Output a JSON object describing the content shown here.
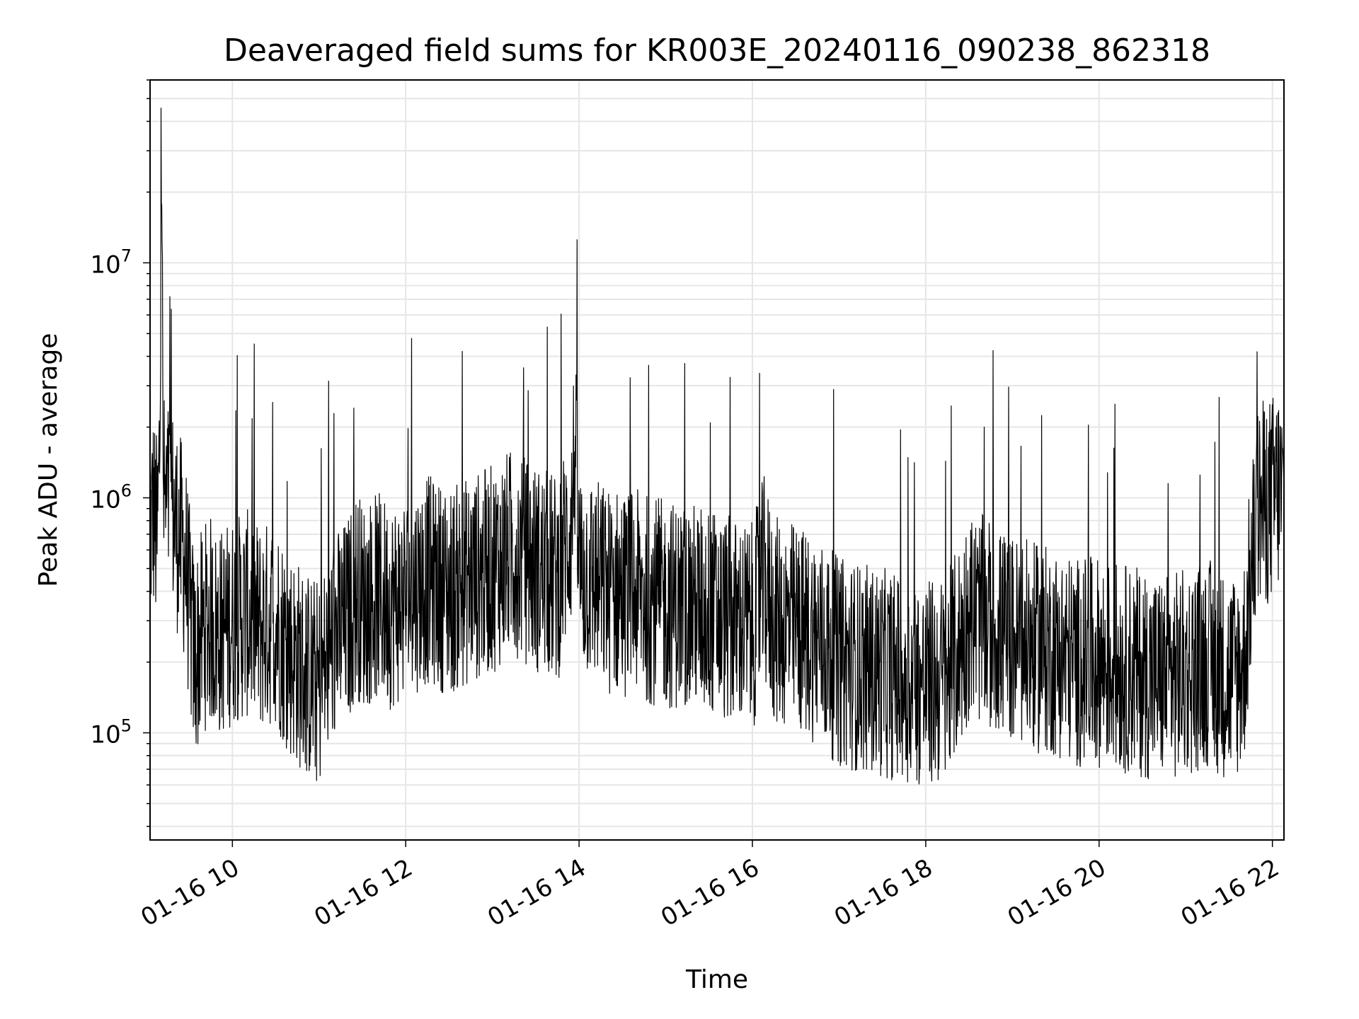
{
  "chart_data": {
    "type": "line",
    "title": "Deaveraged field sums for KR003E_20240116_090238_862318",
    "xlabel": "Time",
    "ylabel": "Peak ADU - average",
    "xscale": "time",
    "yscale": "log",
    "xlim": [
      "01-16 09:03",
      "01-16 22:08"
    ],
    "ylim": [
      35000,
      60000000
    ],
    "grid": true,
    "legend": "none",
    "line_color": "#000000",
    "x_ticks": [
      {
        "value": "01-16 10:00",
        "label": "01-16 10"
      },
      {
        "value": "01-16 12:00",
        "label": "01-16 12"
      },
      {
        "value": "01-16 14:00",
        "label": "01-16 14"
      },
      {
        "value": "01-16 16:00",
        "label": "01-16 16"
      },
      {
        "value": "01-16 18:00",
        "label": "01-16 18"
      },
      {
        "value": "01-16 20:00",
        "label": "01-16 20"
      },
      {
        "value": "01-16 22:00",
        "label": "01-16 22"
      }
    ],
    "y_ticks": [
      {
        "value": 100000,
        "base": "10",
        "exp": "5"
      },
      {
        "value": 1000000,
        "base": "10",
        "exp": "6"
      },
      {
        "value": 10000000,
        "base": "10",
        "exp": "7"
      }
    ],
    "series": [
      {
        "x": [
          "09:03",
          "09:05",
          "09:08",
          "09:10",
          "09:11",
          "09:12",
          "09:14",
          "09:17",
          "09:20",
          "09:23",
          "09:26",
          "09:28",
          "09:31",
          "09:34",
          "09:36",
          "09:40",
          "09:45",
          "09:50",
          "09:55",
          "10:00",
          "10:10",
          "10:15",
          "10:20",
          "10:30",
          "10:35",
          "10:40",
          "10:45",
          "10:50",
          "11:00",
          "11:10",
          "11:20",
          "11:26",
          "11:30",
          "11:40",
          "11:50",
          "12:00",
          "12:15",
          "12:30",
          "12:37",
          "12:45",
          "13:00",
          "13:15",
          "13:30",
          "13:45",
          "13:55",
          "13:57",
          "14:00",
          "14:10",
          "14:20",
          "14:30",
          "14:45",
          "15:00",
          "15:15",
          "15:30",
          "15:45",
          "16:00",
          "16:08",
          "16:15",
          "16:30",
          "16:45",
          "17:00",
          "17:15",
          "17:30",
          "17:45",
          "18:00",
          "18:15",
          "18:25",
          "18:30",
          "18:40",
          "18:45",
          "19:00",
          "19:15",
          "19:30",
          "19:45",
          "20:00",
          "20:15",
          "20:30",
          "20:45",
          "21:00",
          "21:15",
          "21:30",
          "21:40",
          "21:45",
          "21:50",
          "22:00",
          "22:05",
          "22:08"
        ],
        "y": [
          700000,
          900000,
          650000,
          2000000,
          45000000,
          1100000,
          900000,
          1000000,
          800000,
          700000,
          600000,
          500000,
          300000,
          200000,
          230000,
          280000,
          300000,
          260000,
          280000,
          300000,
          320000,
          300000,
          280000,
          300000,
          250000,
          220000,
          200000,
          180000,
          160000,
          250000,
          300000,
          400000,
          350000,
          380000,
          350000,
          380000,
          450000,
          400000,
          420000,
          450000,
          500000,
          600000,
          500000,
          450000,
          800000,
          1800000,
          500000,
          450000,
          400000,
          400000,
          380000,
          350000,
          350000,
          330000,
          300000,
          280000,
          450000,
          300000,
          280000,
          250000,
          200000,
          190000,
          180000,
          170000,
          160000,
          170000,
          250000,
          320000,
          300000,
          280000,
          250000,
          230000,
          220000,
          200000,
          200000,
          190000,
          180000,
          170000,
          180000,
          200000,
          170000,
          190000,
          450000,
          900000,
          1000000,
          1100000,
          900000
        ]
      }
    ]
  }
}
